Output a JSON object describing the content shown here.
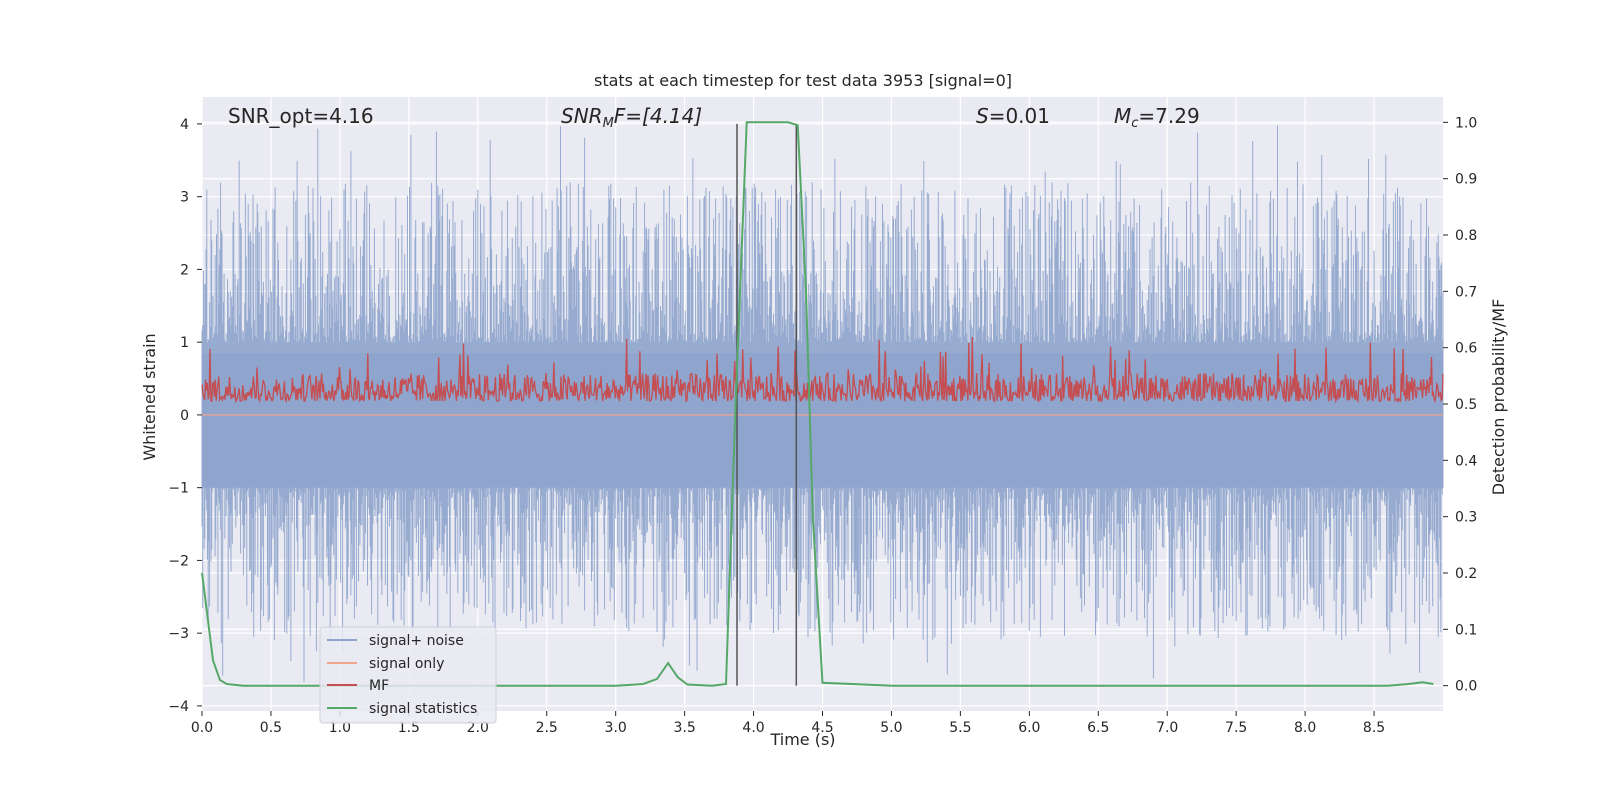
{
  "chart_data": {
    "type": "line",
    "title": "stats at each timestep for test data 3953 [signal=0]",
    "xlabel": "Time (s)",
    "ylabel_left": "Whitened strain",
    "ylabel_right": "Detection probability/MF",
    "xlim": [
      0.0,
      9.0
    ],
    "ylim_left": [
      -4.07,
      4.37
    ],
    "ylim_right": [
      -0.045,
      1.045
    ],
    "grid": true,
    "legend_position": "lower-left",
    "x_ticks": [
      "0.0",
      "0.5",
      "1.0",
      "1.5",
      "2.0",
      "2.5",
      "3.0",
      "3.5",
      "4.0",
      "4.5",
      "5.0",
      "5.5",
      "6.0",
      "6.5",
      "7.0",
      "7.5",
      "8.0",
      "8.5"
    ],
    "y_left_ticks": [
      "4",
      "3",
      "2",
      "1",
      "0",
      "−1",
      "−2",
      "−3",
      "−4"
    ],
    "y_right_ticks": [
      "1.0",
      "0.9",
      "0.8",
      "0.7",
      "0.6",
      "0.5",
      "0.4",
      "0.3",
      "0.2",
      "0.1",
      "0.0"
    ],
    "annotations": {
      "snr_opt": "SNR_opt=4.16",
      "snr_mf_sym": "SNR",
      "snr_mf_sub": "M",
      "snr_mf_rest": "F=[4.14]",
      "s_sym": "S",
      "s_rest": "=0.01",
      "mc_sym": "M",
      "mc_sub": "c",
      "mc_rest": "=7.29"
    },
    "series": [
      {
        "name": "signal+ noise",
        "color": "#8ea4cc",
        "axis": "left",
        "description": "noise envelope, approx. symmetric, peaks up to ~4.0 and down to ~-3.7"
      },
      {
        "name": "signal only",
        "color": "#f0a58f",
        "axis": "left",
        "values": "flat at 0"
      },
      {
        "name": "MF",
        "color": "#c44e52",
        "axis": "right",
        "range": [
          0.5,
          0.62
        ]
      },
      {
        "name": "signal statistics",
        "color": "#55a868",
        "axis": "right",
        "x": [
          0.0,
          0.08,
          0.13,
          0.18,
          0.3,
          1.0,
          2.0,
          3.0,
          3.2,
          3.3,
          3.38,
          3.45,
          3.52,
          3.7,
          3.8,
          3.87,
          3.95,
          4.1,
          4.25,
          4.32,
          4.38,
          4.43,
          4.5,
          5.0,
          6.0,
          7.0,
          8.0,
          8.6,
          8.75,
          8.85,
          8.93
        ],
        "values": [
          0.2,
          0.045,
          0.01,
          0.003,
          0.0,
          0.0,
          0.0,
          0.0,
          0.003,
          0.012,
          0.04,
          0.015,
          0.002,
          0.0,
          0.003,
          0.5,
          1.0,
          1.0,
          1.0,
          0.995,
          0.7,
          0.3,
          0.005,
          0.0,
          0.0,
          0.0,
          0.0,
          0.0,
          0.003,
          0.006,
          0.003
        ]
      }
    ],
    "vertical_markers_x": [
      3.88,
      4.31
    ]
  }
}
